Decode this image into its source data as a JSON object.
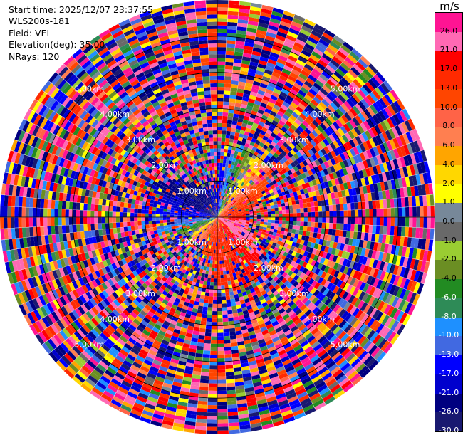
{
  "info": {
    "start_time": "Start time: 2025/12/07 23:37:55",
    "instrument": "WLS200s-181",
    "field": "Field: VEL",
    "elevation": "Elevation(deg): 35.00",
    "nrays": "NRays: 120"
  },
  "colorbar": {
    "unit": "m/s",
    "ticks": [
      "26.0",
      "21.0",
      "17.0",
      "13.0",
      "10.0",
      "8.0",
      "6.0",
      "4.0",
      "2.0",
      "1.0",
      "0.0",
      "-1.0",
      "-2.0",
      "-4.0",
      "-6.0",
      "-8.0",
      "-10.0",
      "-13.0",
      "-17.0",
      "-21.0",
      "-26.0",
      "-30.0"
    ],
    "colors": [
      "#ff1493",
      "#ff69b4",
      "#ff0000",
      "#ff2a00",
      "#ff4500",
      "#ff6347",
      "#ff7f50",
      "#ffa500",
      "#ffd700",
      "#ffff00",
      "#778899",
      "#696969",
      "#9acd32",
      "#6b8e23",
      "#228b22",
      "#2e8b57",
      "#1e90ff",
      "#4169e1",
      "#0000ff",
      "#0000cd",
      "#000080",
      "#191970"
    ]
  },
  "chart_data": {
    "type": "heatmap",
    "title": "",
    "field": "VEL",
    "units": "m/s",
    "projection": "polar PPI scan",
    "elevation_deg": 35.0,
    "n_rays": 120,
    "range_rings_km": [
      1.0,
      2.0,
      3.0,
      4.0,
      5.0
    ],
    "range_ring_labels": [
      "1.00km",
      "2.00km",
      "3.00km",
      "4.00km",
      "5.00km"
    ],
    "max_range_km": 6.0,
    "color_scale_min": -30.0,
    "color_scale_max": 30.0,
    "coherent_region_velocity_by_azimuth": [
      {
        "azimuth_deg": 0,
        "velocity_ms": -17
      },
      {
        "azimuth_deg": 20,
        "velocity_ms": -6
      },
      {
        "azimuth_deg": 40,
        "velocity_ms": 6
      },
      {
        "azimuth_deg": 60,
        "velocity_ms": 13
      },
      {
        "azimuth_deg": 90,
        "velocity_ms": 17
      },
      {
        "azimuth_deg": 110,
        "velocity_ms": 26
      },
      {
        "azimuth_deg": 150,
        "velocity_ms": 17
      },
      {
        "azimuth_deg": 200,
        "velocity_ms": 13
      },
      {
        "azimuth_deg": 230,
        "velocity_ms": 4
      },
      {
        "azimuth_deg": 250,
        "velocity_ms": -6
      },
      {
        "azimuth_deg": 280,
        "velocity_ms": -17
      },
      {
        "azimuth_deg": 310,
        "velocity_ms": -26
      }
    ],
    "coherent_region_extent_km": 2.0
  }
}
